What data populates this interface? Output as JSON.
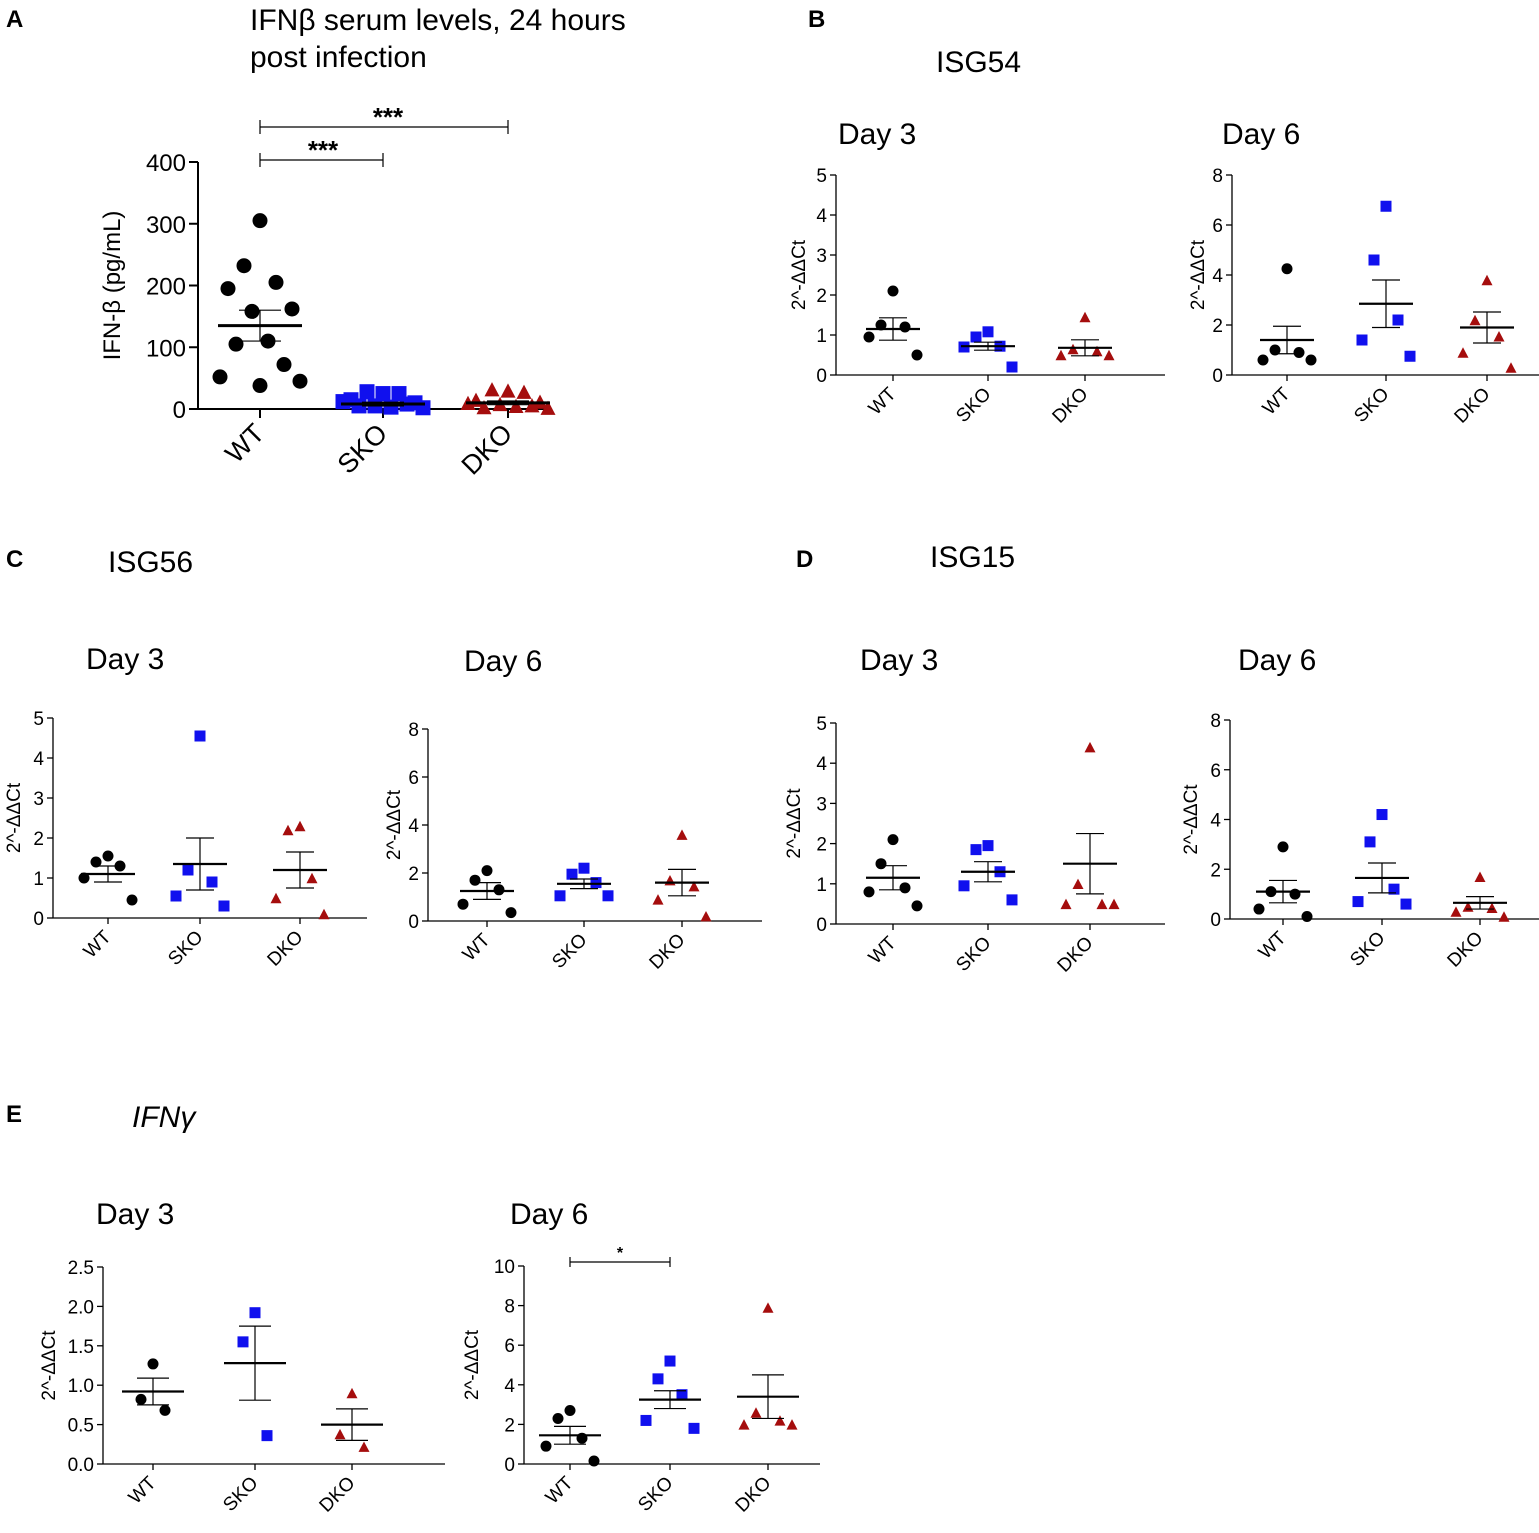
{
  "figure": {
    "colors": {
      "WT": "#000000",
      "SKO": "#1010ee",
      "DKO": "#a50d0d"
    },
    "panel_letters": [
      "A",
      "B",
      "C",
      "D",
      "E"
    ],
    "gene_titles": {
      "B": "ISG54",
      "C": "ISG56",
      "D": "ISG15",
      "E": "IFNγ"
    }
  },
  "chart_data": [
    {
      "id": "A",
      "type": "scatter",
      "title": "IFNβ serum levels, 24 hours post infection",
      "title_lines": [
        "IFNβ serum levels, 24 hours",
        "post infection"
      ],
      "ylabel": "IFN-β (pg/mL)",
      "ylim": [
        0,
        400
      ],
      "yticks": [
        0,
        100,
        200,
        300,
        400
      ],
      "ytick_labels": [
        "0",
        "100",
        "200",
        "300",
        "400"
      ],
      "categories": [
        "WT",
        "SKO",
        "DKO"
      ],
      "series": [
        {
          "name": "WT",
          "marker": "circle",
          "color": "#000000",
          "mean": 135,
          "sem": 25,
          "points": [
            305,
            232,
            205,
            195,
            162,
            158,
            110,
            105,
            72,
            52,
            45,
            38
          ]
        },
        {
          "name": "SKO",
          "marker": "square",
          "color": "#1010ee",
          "mean": 8,
          "sem": 3,
          "points": [
            25,
            28,
            25,
            15,
            10,
            5,
            3,
            5,
            8,
            12,
            2
          ]
        },
        {
          "name": "DKO",
          "marker": "triangle",
          "color": "#a50d0d",
          "mean": 10,
          "sem": 3,
          "points": [
            30,
            32,
            28,
            15,
            12,
            8,
            5,
            3,
            6,
            10,
            2
          ]
        }
      ],
      "significance": [
        {
          "from": "WT",
          "to": "SKO",
          "label": "***"
        },
        {
          "from": "WT",
          "to": "DKO",
          "label": "***"
        }
      ]
    },
    {
      "id": "B1",
      "type": "scatter",
      "gene": "ISG54",
      "title": "Day 3",
      "ylabel": "2^-ΔΔCt",
      "ylim": [
        0,
        5
      ],
      "yticks": [
        0,
        1,
        2,
        3,
        4,
        5
      ],
      "ytick_labels": [
        "0",
        "1",
        "2",
        "3",
        "4",
        "5"
      ],
      "categories": [
        "WT",
        "SKO",
        "DKO"
      ],
      "series": [
        {
          "name": "WT",
          "marker": "circle",
          "color": "#000000",
          "mean": 1.15,
          "sem": 0.28,
          "points": [
            2.1,
            1.25,
            1.2,
            0.95,
            0.5
          ]
        },
        {
          "name": "SKO",
          "marker": "square",
          "color": "#1010ee",
          "mean": 0.72,
          "sem": 0.1,
          "points": [
            1.08,
            0.95,
            0.72,
            0.7,
            0.2
          ]
        },
        {
          "name": "DKO",
          "marker": "triangle",
          "color": "#a50d0d",
          "mean": 0.68,
          "sem": 0.2,
          "points": [
            1.45,
            0.65,
            0.6,
            0.5,
            0.5
          ]
        }
      ],
      "significance": []
    },
    {
      "id": "B2",
      "type": "scatter",
      "gene": "ISG54",
      "title": "Day 6",
      "ylabel": "2^-ΔΔCt",
      "ylim": [
        0,
        8
      ],
      "yticks": [
        0,
        2,
        4,
        6,
        8
      ],
      "ytick_labels": [
        "0",
        "2",
        "4",
        "6",
        "8"
      ],
      "categories": [
        "WT",
        "SKO",
        "DKO"
      ],
      "series": [
        {
          "name": "WT",
          "marker": "circle",
          "color": "#000000",
          "mean": 1.4,
          "sem": 0.55,
          "points": [
            4.25,
            1.0,
            0.9,
            0.6,
            0.6
          ]
        },
        {
          "name": "SKO",
          "marker": "square",
          "color": "#1010ee",
          "mean": 2.85,
          "sem": 0.95,
          "points": [
            6.75,
            4.6,
            2.2,
            1.4,
            0.75
          ]
        },
        {
          "name": "DKO",
          "marker": "triangle",
          "color": "#a50d0d",
          "mean": 1.9,
          "sem": 0.62,
          "points": [
            3.8,
            2.2,
            1.55,
            0.9,
            0.3
          ]
        }
      ],
      "significance": []
    },
    {
      "id": "C1",
      "type": "scatter",
      "gene": "ISG56",
      "title": "Day 3",
      "ylabel": "2^-ΔΔCt",
      "ylim": [
        0,
        5
      ],
      "yticks": [
        0,
        1,
        2,
        3,
        4,
        5
      ],
      "ytick_labels": [
        "0",
        "1",
        "2",
        "3",
        "4",
        "5"
      ],
      "categories": [
        "WT",
        "SKO",
        "DKO"
      ],
      "series": [
        {
          "name": "WT",
          "marker": "circle",
          "color": "#000000",
          "mean": 1.1,
          "sem": 0.2,
          "points": [
            1.55,
            1.4,
            1.3,
            1.0,
            0.45
          ]
        },
        {
          "name": "SKO",
          "marker": "square",
          "color": "#1010ee",
          "mean": 1.35,
          "sem": 0.65,
          "points": [
            4.55,
            1.2,
            0.9,
            0.55,
            0.3
          ]
        },
        {
          "name": "DKO",
          "marker": "triangle",
          "color": "#a50d0d",
          "mean": 1.2,
          "sem": 0.45,
          "points": [
            2.3,
            2.2,
            1.0,
            0.5,
            0.1
          ]
        }
      ],
      "significance": []
    },
    {
      "id": "C2",
      "type": "scatter",
      "gene": "ISG56",
      "title": "Day 6",
      "ylabel": "2^-ΔΔCt",
      "ylim": [
        0,
        8
      ],
      "yticks": [
        0,
        2,
        4,
        6,
        8
      ],
      "ytick_labels": [
        "0",
        "2",
        "4",
        "6",
        "8"
      ],
      "categories": [
        "WT",
        "SKO",
        "DKO"
      ],
      "series": [
        {
          "name": "WT",
          "marker": "circle",
          "color": "#000000",
          "mean": 1.25,
          "sem": 0.35,
          "points": [
            2.1,
            1.7,
            1.3,
            0.7,
            0.35
          ]
        },
        {
          "name": "SKO",
          "marker": "square",
          "color": "#1010ee",
          "mean": 1.55,
          "sem": 0.2,
          "points": [
            2.2,
            1.95,
            1.6,
            1.05,
            1.05
          ]
        },
        {
          "name": "DKO",
          "marker": "triangle",
          "color": "#a50d0d",
          "mean": 1.6,
          "sem": 0.55,
          "points": [
            3.6,
            1.7,
            1.45,
            0.9,
            0.2
          ]
        }
      ],
      "significance": []
    },
    {
      "id": "D1",
      "type": "scatter",
      "gene": "ISG15",
      "title": "Day 3",
      "ylabel": "2^-ΔΔCt",
      "ylim": [
        0,
        5
      ],
      "yticks": [
        0,
        1,
        2,
        3,
        4,
        5
      ],
      "ytick_labels": [
        "0",
        "1",
        "2",
        "3",
        "4",
        "5"
      ],
      "categories": [
        "WT",
        "SKO",
        "DKO"
      ],
      "series": [
        {
          "name": "WT",
          "marker": "circle",
          "color": "#000000",
          "mean": 1.15,
          "sem": 0.3,
          "points": [
            2.1,
            1.5,
            0.9,
            0.8,
            0.45
          ]
        },
        {
          "name": "SKO",
          "marker": "square",
          "color": "#1010ee",
          "mean": 1.3,
          "sem": 0.25,
          "points": [
            1.95,
            1.85,
            1.3,
            0.95,
            0.6
          ]
        },
        {
          "name": "DKO",
          "marker": "triangle",
          "color": "#a50d0d",
          "mean": 1.5,
          "sem": 0.75,
          "points": [
            4.4,
            1.0,
            0.5,
            0.5,
            0.5
          ]
        }
      ],
      "significance": []
    },
    {
      "id": "D2",
      "type": "scatter",
      "gene": "ISG15",
      "title": "Day 6",
      "ylabel": "2^-ΔΔCt",
      "ylim": [
        0,
        8
      ],
      "yticks": [
        0,
        2,
        4,
        6,
        8
      ],
      "ytick_labels": [
        "0",
        "2",
        "4",
        "6",
        "8"
      ],
      "categories": [
        "WT",
        "SKO",
        "DKO"
      ],
      "series": [
        {
          "name": "WT",
          "marker": "circle",
          "color": "#000000",
          "mean": 1.1,
          "sem": 0.45,
          "points": [
            2.9,
            1.1,
            1.0,
            0.4,
            0.1
          ]
        },
        {
          "name": "SKO",
          "marker": "square",
          "color": "#1010ee",
          "mean": 1.65,
          "sem": 0.6,
          "points": [
            4.2,
            3.1,
            1.2,
            0.7,
            0.6
          ]
        },
        {
          "name": "DKO",
          "marker": "triangle",
          "color": "#a50d0d",
          "mean": 0.65,
          "sem": 0.25,
          "points": [
            1.7,
            0.5,
            0.45,
            0.3,
            0.1
          ]
        }
      ],
      "significance": []
    },
    {
      "id": "E1",
      "type": "scatter",
      "gene": "IFNγ",
      "title": "Day 3",
      "ylabel": "2^-ΔΔCt",
      "ylim": [
        0,
        2.5
      ],
      "yticks": [
        0,
        0.5,
        1,
        1.5,
        2,
        2.5
      ],
      "ytick_labels": [
        "0.0",
        "0.5",
        "1.0",
        "1.5",
        "2.0",
        "2.5"
      ],
      "categories": [
        "WT",
        "SKO",
        "DKO"
      ],
      "series": [
        {
          "name": "WT",
          "marker": "circle",
          "color": "#000000",
          "mean": 0.92,
          "sem": 0.17,
          "points": [
            1.27,
            0.82,
            0.68
          ]
        },
        {
          "name": "SKO",
          "marker": "square",
          "color": "#1010ee",
          "mean": 1.28,
          "sem": 0.47,
          "points": [
            1.92,
            1.55,
            0.36
          ]
        },
        {
          "name": "DKO",
          "marker": "triangle",
          "color": "#a50d0d",
          "mean": 0.5,
          "sem": 0.2,
          "points": [
            0.9,
            0.38,
            0.22
          ]
        }
      ],
      "significance": []
    },
    {
      "id": "E2",
      "type": "scatter",
      "gene": "IFNγ",
      "title": "Day 6",
      "ylabel": "2^-ΔΔCt",
      "ylim": [
        0,
        10
      ],
      "yticks": [
        0,
        2,
        4,
        6,
        8,
        10
      ],
      "ytick_labels": [
        "0",
        "2",
        "4",
        "6",
        "8",
        "10"
      ],
      "categories": [
        "WT",
        "SKO",
        "DKO"
      ],
      "series": [
        {
          "name": "WT",
          "marker": "circle",
          "color": "#000000",
          "mean": 1.45,
          "sem": 0.45,
          "points": [
            2.7,
            2.3,
            1.3,
            0.9,
            0.15
          ]
        },
        {
          "name": "SKO",
          "marker": "square",
          "color": "#1010ee",
          "mean": 3.25,
          "sem": 0.45,
          "points": [
            5.2,
            4.3,
            3.5,
            2.2,
            1.8
          ]
        },
        {
          "name": "DKO",
          "marker": "triangle",
          "color": "#a50d0d",
          "mean": 3.4,
          "sem": 1.1,
          "points": [
            7.9,
            2.6,
            2.2,
            2.0,
            2.0
          ]
        }
      ],
      "significance": [
        {
          "from": "WT",
          "to": "SKO",
          "label": "*"
        }
      ]
    }
  ]
}
